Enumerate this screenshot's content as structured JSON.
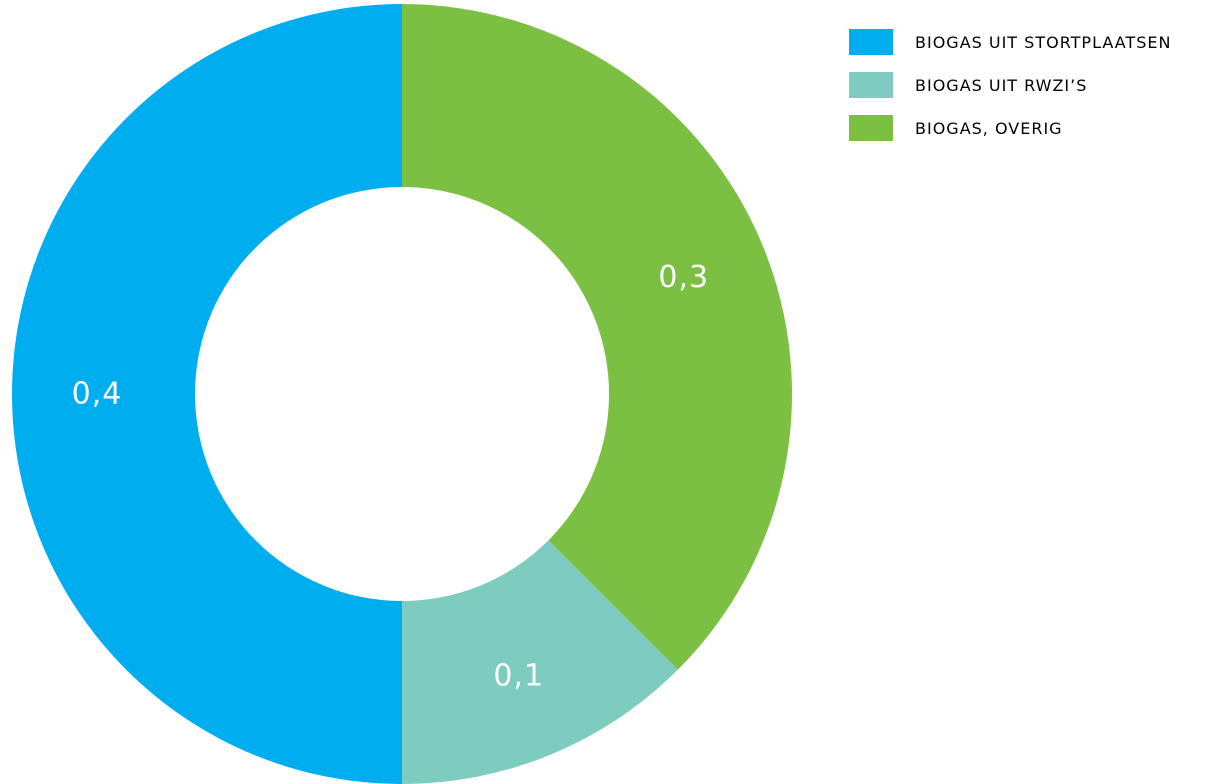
{
  "chart_data": {
    "type": "pie",
    "donut": true,
    "title": "",
    "legend_position": "top-right",
    "slices": [
      {
        "name": "biogas uit stortplaatsen",
        "value": 0.4,
        "label": "0,4",
        "color": "#00aeef"
      },
      {
        "name": "biogas uit RWZI’s",
        "value": 0.1,
        "label": "0,1",
        "color": "#7ecbc0"
      },
      {
        "name": "biogas, overig",
        "value": 0.3,
        "label": "0,3",
        "color": "#7cc043"
      }
    ],
    "draw_order": [
      2,
      1,
      0
    ],
    "legend": [
      {
        "label": "biogas uit stortplaatsen",
        "color": "#00aeef"
      },
      {
        "label": "biogas uit RWZI’s",
        "color": "#7ecbc0"
      },
      {
        "label": "biogas, overig",
        "color": "#7cc043"
      }
    ]
  }
}
